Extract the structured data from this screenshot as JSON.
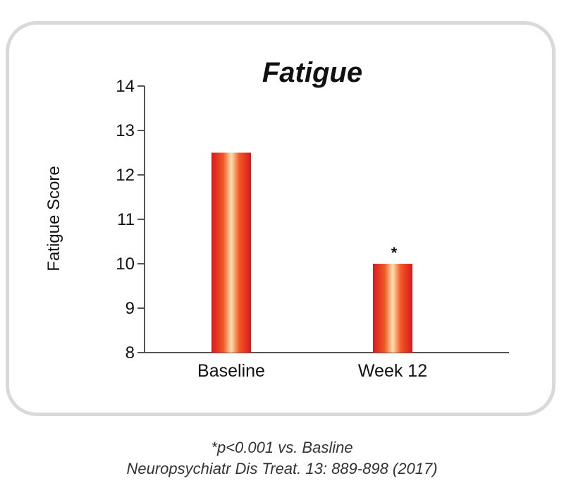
{
  "chart_data": {
    "type": "bar",
    "title": "Fatigue",
    "ylabel": "Fatigue Score",
    "xlabel": "",
    "categories": [
      "Baseline",
      "Week 12"
    ],
    "values": [
      12.5,
      10.0
    ],
    "ylim": [
      8,
      14
    ],
    "yticks": [
      "8",
      "9",
      "10",
      "11",
      "12",
      "13",
      "14"
    ],
    "annotations": [
      "",
      "*"
    ],
    "grid": false,
    "colors": {
      "bar_center": "#fde0b0",
      "bar_mid": "#f05a24",
      "bar_edge": "#d7191f"
    }
  },
  "footnotes": {
    "significance": "*p<0.001 vs. Basline",
    "citation": "Neuropsychiatr Dis Treat. 13: 889-898 (2017)"
  }
}
